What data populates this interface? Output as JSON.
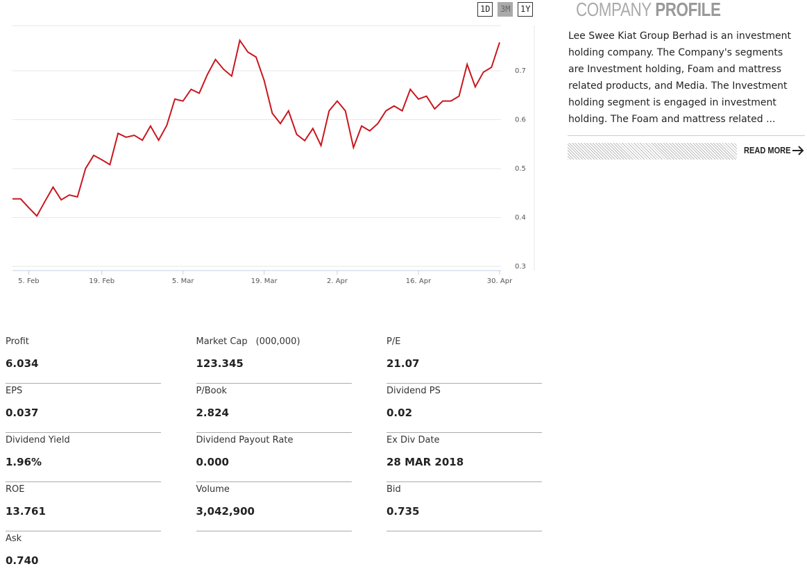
{
  "chart_data": {
    "type": "line",
    "categories": [
      null,
      null,
      "5. Feb",
      null,
      null,
      null,
      null,
      null,
      null,
      null,
      null,
      "19. Feb",
      null,
      null,
      null,
      null,
      null,
      null,
      null,
      null,
      null,
      "5. Mar",
      null,
      null,
      null,
      null,
      null,
      null,
      null,
      null,
      null,
      "19. Mar",
      null,
      null,
      null,
      null,
      null,
      null,
      null,
      null,
      "2. Apr",
      null,
      null,
      null,
      null,
      null,
      null,
      null,
      null,
      null,
      "16. Apr",
      null,
      null,
      null,
      null,
      null,
      null,
      null,
      null,
      null,
      "30. Apr"
    ],
    "values": [
      0.438,
      0.438,
      0.42,
      0.403,
      0.433,
      0.462,
      0.436,
      0.446,
      0.442,
      0.5,
      0.527,
      0.518,
      0.508,
      0.572,
      0.564,
      0.568,
      0.558,
      0.587,
      0.558,
      0.588,
      0.642,
      0.638,
      0.662,
      0.654,
      0.692,
      0.723,
      0.703,
      0.689,
      0.762,
      0.738,
      0.728,
      0.68,
      0.613,
      0.592,
      0.618,
      0.57,
      0.557,
      0.582,
      0.547,
      0.618,
      0.638,
      0.618,
      0.543,
      0.587,
      0.577,
      0.592,
      0.618,
      0.628,
      0.618,
      0.662,
      0.642,
      0.648,
      0.622,
      0.638,
      0.638,
      0.648,
      0.713,
      0.667,
      0.697,
      0.707,
      0.758
    ],
    "color": "#c8161d",
    "ylim": [
      0.29,
      0.79
    ],
    "yticks": [
      0.3,
      0.4,
      0.5,
      0.6,
      0.7
    ],
    "grid": true
  },
  "range_buttons": [
    {
      "label": "1D",
      "active": false
    },
    {
      "label": "3M",
      "active": true
    },
    {
      "label": "1Y",
      "active": false
    }
  ],
  "profile": {
    "title_light": "COMPANY",
    "title_bold": "PROFILE",
    "text": "Lee Swee Kiat Group Berhad is an investment holding company. The Company's segments are Investment holding, Foam and mattress related products, and Media. The Investment holding segment is engaged in investment holding. The Foam and mattress related ...",
    "link": "READ MORE"
  },
  "stats": [
    {
      "label": "Profit",
      "value": "6.034"
    },
    {
      "label": "Market Cap",
      "unit": "(000,000)",
      "value": "123.345"
    },
    {
      "label": "P/E",
      "value": "21.07"
    },
    {
      "label": "EPS",
      "value": "0.037"
    },
    {
      "label": "P/Book",
      "value": "2.824"
    },
    {
      "label": "Dividend PS",
      "value": "0.02"
    },
    {
      "label": "Dividend Yield",
      "value": "1.96%"
    },
    {
      "label": "Dividend Payout Rate",
      "value": "0.000"
    },
    {
      "label": "Ex Div Date",
      "value": "28 MAR 2018"
    },
    {
      "label": "ROE",
      "value": "13.761"
    },
    {
      "label": "Volume",
      "value": "3,042,900"
    },
    {
      "label": "Bid",
      "value": "0.735"
    },
    {
      "label": "Ask",
      "value": "0.740"
    }
  ]
}
